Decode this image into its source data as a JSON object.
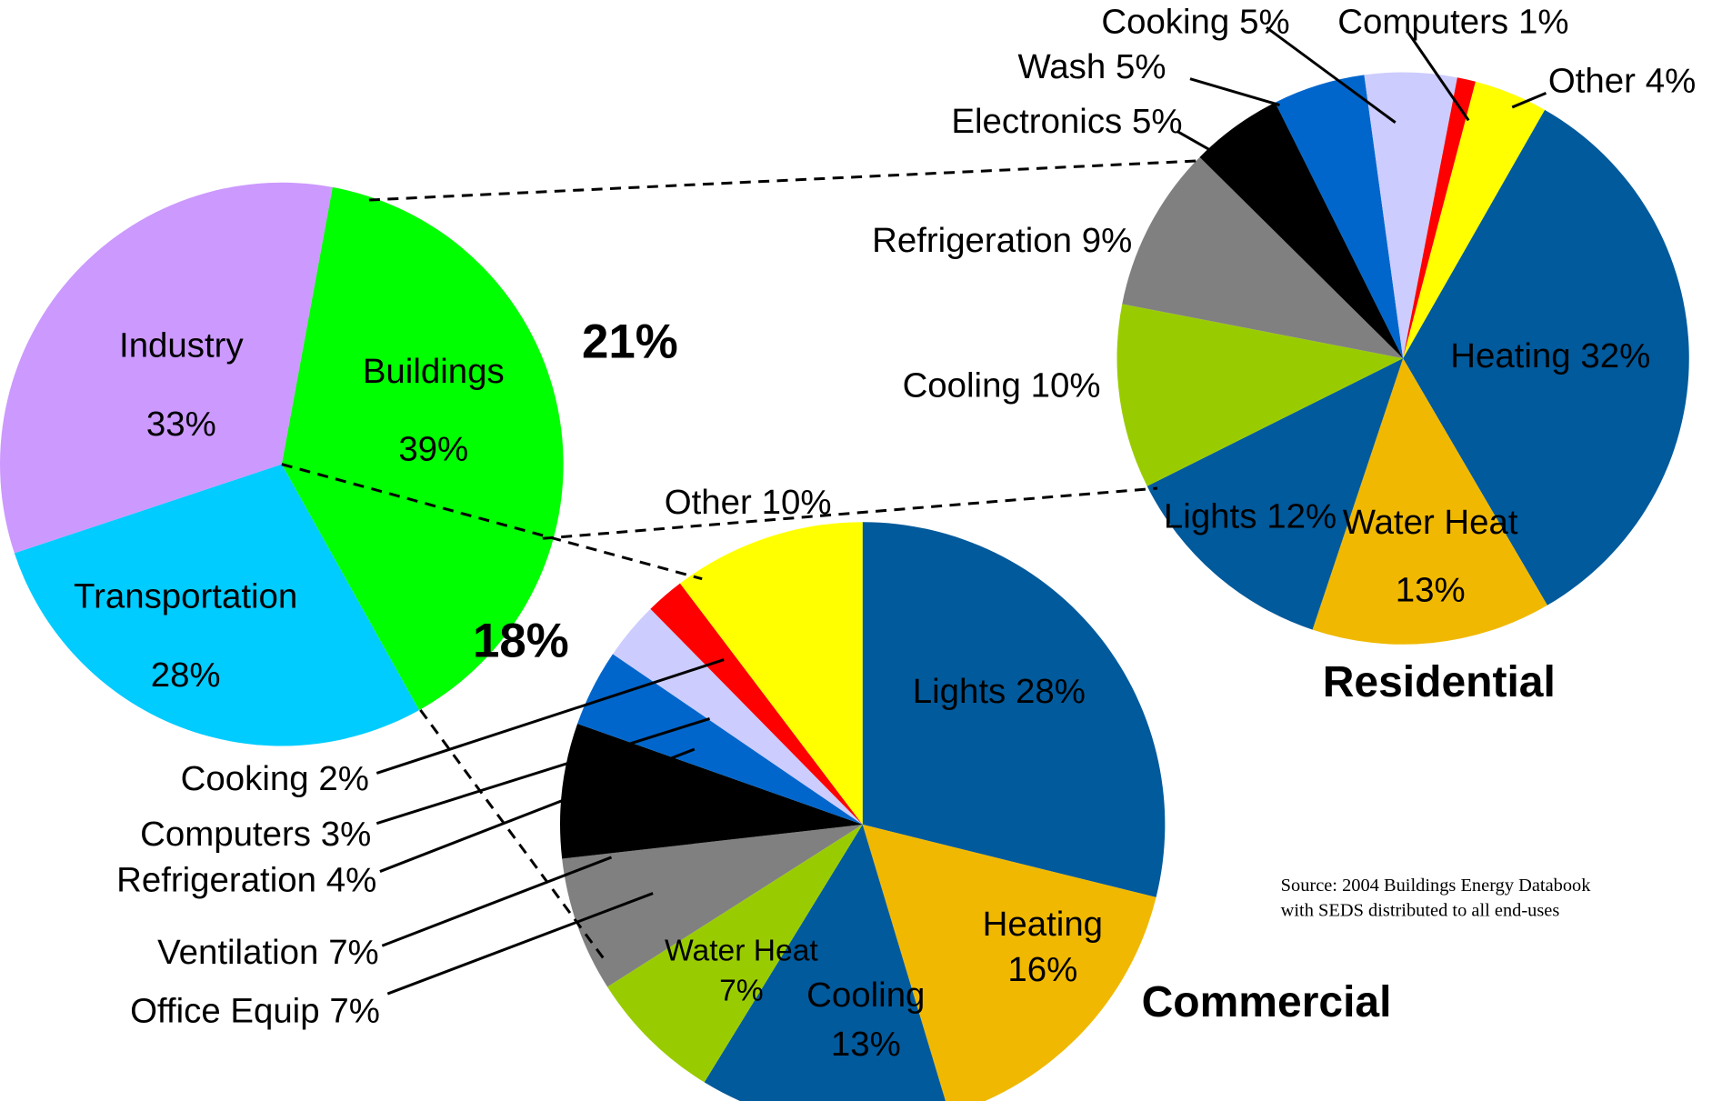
{
  "chart_data": [
    {
      "type": "pie",
      "categories": [
        "Buildings",
        "Transportation",
        "Industry"
      ],
      "values": [
        39,
        28,
        33
      ],
      "value_labels": [
        "39%",
        "28%",
        "33%"
      ],
      "colors": [
        "#00ff00",
        "#00ccff",
        "#cc99ff"
      ],
      "annotations": [
        "21%",
        "18%"
      ]
    },
    {
      "type": "pie",
      "title": "Residential",
      "categories": [
        "Heating",
        "Water Heat",
        "Lights",
        "Cooling",
        "Refrigeration",
        "Electronics",
        "Wash",
        "Cooking",
        "Computers",
        "Other"
      ],
      "values": [
        32,
        13,
        12,
        10,
        9,
        5,
        5,
        5,
        1,
        4
      ],
      "value_labels": [
        "32%",
        "13%",
        "12%",
        "10%",
        "9%",
        "5%",
        "5%",
        "5%",
        "1%",
        "4%"
      ],
      "colors": [
        "#005a9c",
        "#f0b800",
        "#005a9c",
        "#99cc00",
        "#808080",
        "#000000",
        "#0066cc",
        "#ccccff",
        "#ff0000",
        "#ffff00"
      ]
    },
    {
      "type": "pie",
      "title": "Commercial",
      "categories": [
        "Lights",
        "Heating",
        "Cooling",
        "Water Heat",
        "Office Equip",
        "Ventilation",
        "Refrigeration",
        "Computers",
        "Cooking",
        "Other"
      ],
      "values": [
        28,
        16,
        13,
        7,
        7,
        7,
        4,
        3,
        2,
        10
      ],
      "value_labels": [
        "28%",
        "16%",
        "13%",
        "7%",
        "7%",
        "7%",
        "4%",
        "3%",
        "2%",
        "10%"
      ],
      "colors": [
        "#005a9c",
        "#f0b800",
        "#005a9c",
        "#99cc00",
        "#808080",
        "#000000",
        "#0066cc",
        "#ccccff",
        "#ff0000",
        "#ffff00"
      ]
    }
  ],
  "source": [
    "Source:  2004 Buildings Energy Databook",
    "with SEDS distributed to all end-uses"
  ]
}
